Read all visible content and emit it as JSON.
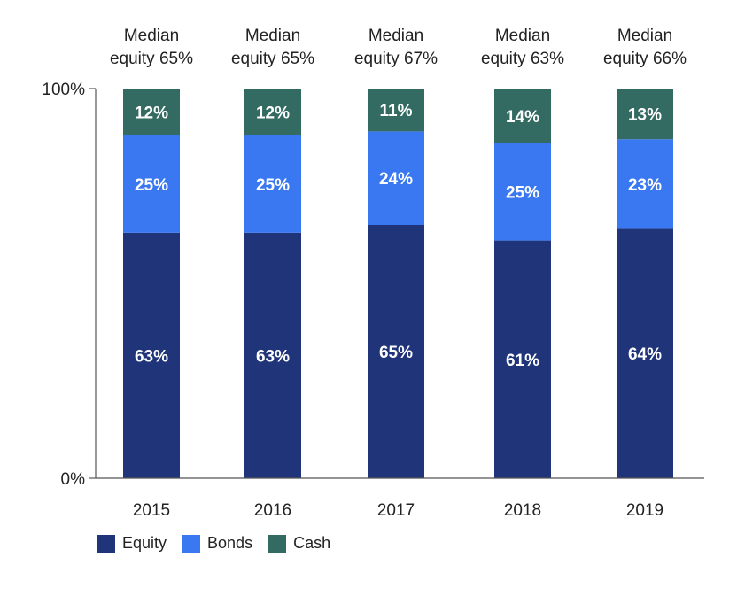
{
  "chart_data": {
    "type": "bar",
    "stacked": true,
    "categories": [
      "2015",
      "2016",
      "2017",
      "2018",
      "2019"
    ],
    "series": [
      {
        "name": "Equity",
        "values": [
          63,
          63,
          65,
          61,
          64
        ],
        "labels": [
          "63%",
          "63%",
          "65%",
          "61%",
          "64%"
        ],
        "color": "#1f3479"
      },
      {
        "name": "Bonds",
        "values": [
          25,
          25,
          24,
          25,
          23
        ],
        "labels": [
          "25%",
          "25%",
          "24%",
          "25%",
          "23%"
        ],
        "color": "#3a78f2"
      },
      {
        "name": "Cash",
        "values": [
          12,
          12,
          11,
          14,
          13
        ],
        "labels": [
          "12%",
          "12%",
          "11%",
          "14%",
          "13%"
        ],
        "color": "#336b63"
      }
    ],
    "annotations": [
      {
        "line1": "Median",
        "line2": "equity 65%"
      },
      {
        "line1": "Median",
        "line2": "equity 65%"
      },
      {
        "line1": "Median",
        "line2": "equity 67%"
      },
      {
        "line1": "Median",
        "line2": "equity 63%"
      },
      {
        "line1": "Median",
        "line2": "equity 66%"
      }
    ],
    "yticks": [
      {
        "value": 0,
        "label": "0%"
      },
      {
        "value": 100,
        "label": "100%"
      }
    ],
    "ylim": [
      0,
      100
    ],
    "legend_position": "bottom-left"
  }
}
